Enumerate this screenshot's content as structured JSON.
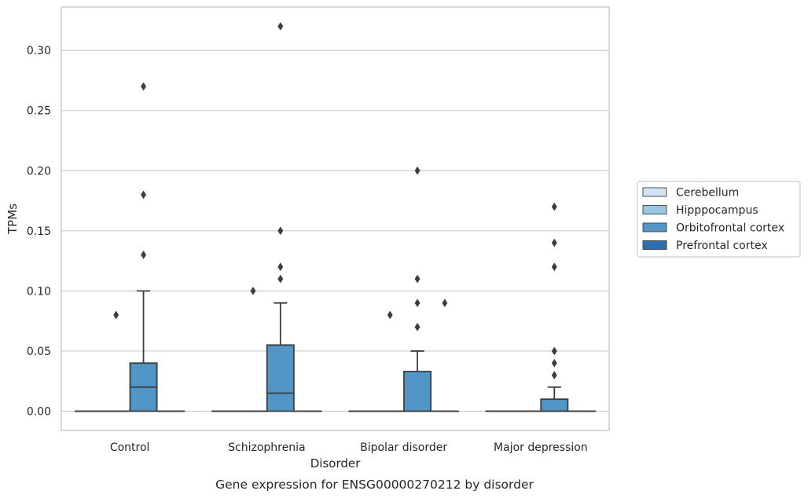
{
  "chart_data": {
    "type": "box",
    "caption": "Gene expression for ENSG00000270212 by disorder",
    "xlabel": "Disorder",
    "ylabel": "TPMs",
    "ylim": [
      -0.016,
      0.336
    ],
    "yticks": [
      0.0,
      0.05,
      0.1,
      0.15,
      0.2,
      0.25,
      0.3
    ],
    "ytick_labels": [
      "0.00",
      "0.05",
      "0.10",
      "0.15",
      "0.20",
      "0.25",
      "0.30"
    ],
    "grid": "horizontal",
    "legend_position": "right",
    "categories": [
      "Control",
      "Schizophrenia",
      "Bipolar disorder",
      "Major depression"
    ],
    "series": [
      {
        "name": "Cerebellum",
        "color": "#d2e3f3",
        "boxes": [
          {
            "q1": 0,
            "median": 0,
            "q3": 0,
            "whislo": 0,
            "whishi": 0,
            "fliers": []
          },
          {
            "q1": 0,
            "median": 0,
            "q3": 0,
            "whislo": 0,
            "whishi": 0,
            "fliers": []
          },
          {
            "q1": 0,
            "median": 0,
            "q3": 0,
            "whislo": 0,
            "whishi": 0,
            "fliers": []
          },
          {
            "q1": 0,
            "median": 0,
            "q3": 0,
            "whislo": 0,
            "whishi": 0,
            "fliers": []
          }
        ]
      },
      {
        "name": "Hipppocampus",
        "color": "#9ac8e0",
        "boxes": [
          {
            "q1": 0,
            "median": 0,
            "q3": 0,
            "whislo": 0,
            "whishi": 0,
            "fliers": [
              0.08
            ]
          },
          {
            "q1": 0,
            "median": 0,
            "q3": 0,
            "whislo": 0,
            "whishi": 0,
            "fliers": [
              0.1
            ]
          },
          {
            "q1": 0,
            "median": 0,
            "q3": 0,
            "whislo": 0,
            "whishi": 0,
            "fliers": [
              0.08
            ]
          },
          {
            "q1": 0,
            "median": 0,
            "q3": 0,
            "whislo": 0,
            "whishi": 0,
            "fliers": []
          }
        ]
      },
      {
        "name": "Orbitofrontal cortex",
        "color": "#5296c7",
        "boxes": [
          {
            "q1": 0,
            "median": 0.02,
            "q3": 0.04,
            "whislo": 0,
            "whishi": 0.1,
            "fliers": [
              0.13,
              0.18,
              0.27
            ]
          },
          {
            "q1": 0,
            "median": 0.015,
            "q3": 0.055,
            "whislo": 0,
            "whishi": 0.09,
            "fliers": [
              0.11,
              0.12,
              0.15,
              0.32
            ]
          },
          {
            "q1": 0,
            "median": 0,
            "q3": 0.033,
            "whislo": 0,
            "whishi": 0.05,
            "fliers": [
              0.07,
              0.09,
              0.11,
              0.2
            ]
          },
          {
            "q1": 0,
            "median": 0,
            "q3": 0.01,
            "whislo": 0,
            "whishi": 0.02,
            "fliers": [
              0.03,
              0.04,
              0.05,
              0.12,
              0.14,
              0.17
            ]
          }
        ]
      },
      {
        "name": "Prefrontal cortex",
        "color": "#2d6eaf",
        "boxes": [
          {
            "q1": 0,
            "median": 0,
            "q3": 0,
            "whislo": 0,
            "whishi": 0,
            "fliers": []
          },
          {
            "q1": 0,
            "median": 0,
            "q3": 0,
            "whislo": 0,
            "whishi": 0,
            "fliers": []
          },
          {
            "q1": 0,
            "median": 0,
            "q3": 0,
            "whislo": 0,
            "whishi": 0,
            "fliers": [
              0.09
            ]
          },
          {
            "q1": 0,
            "median": 0,
            "q3": 0,
            "whislo": 0,
            "whishi": 0,
            "fliers": []
          }
        ]
      }
    ],
    "colors": {
      "grid": "#cccccc",
      "frame": "#cccccc",
      "lines": "#3d3d3d",
      "text": "#262626"
    }
  }
}
